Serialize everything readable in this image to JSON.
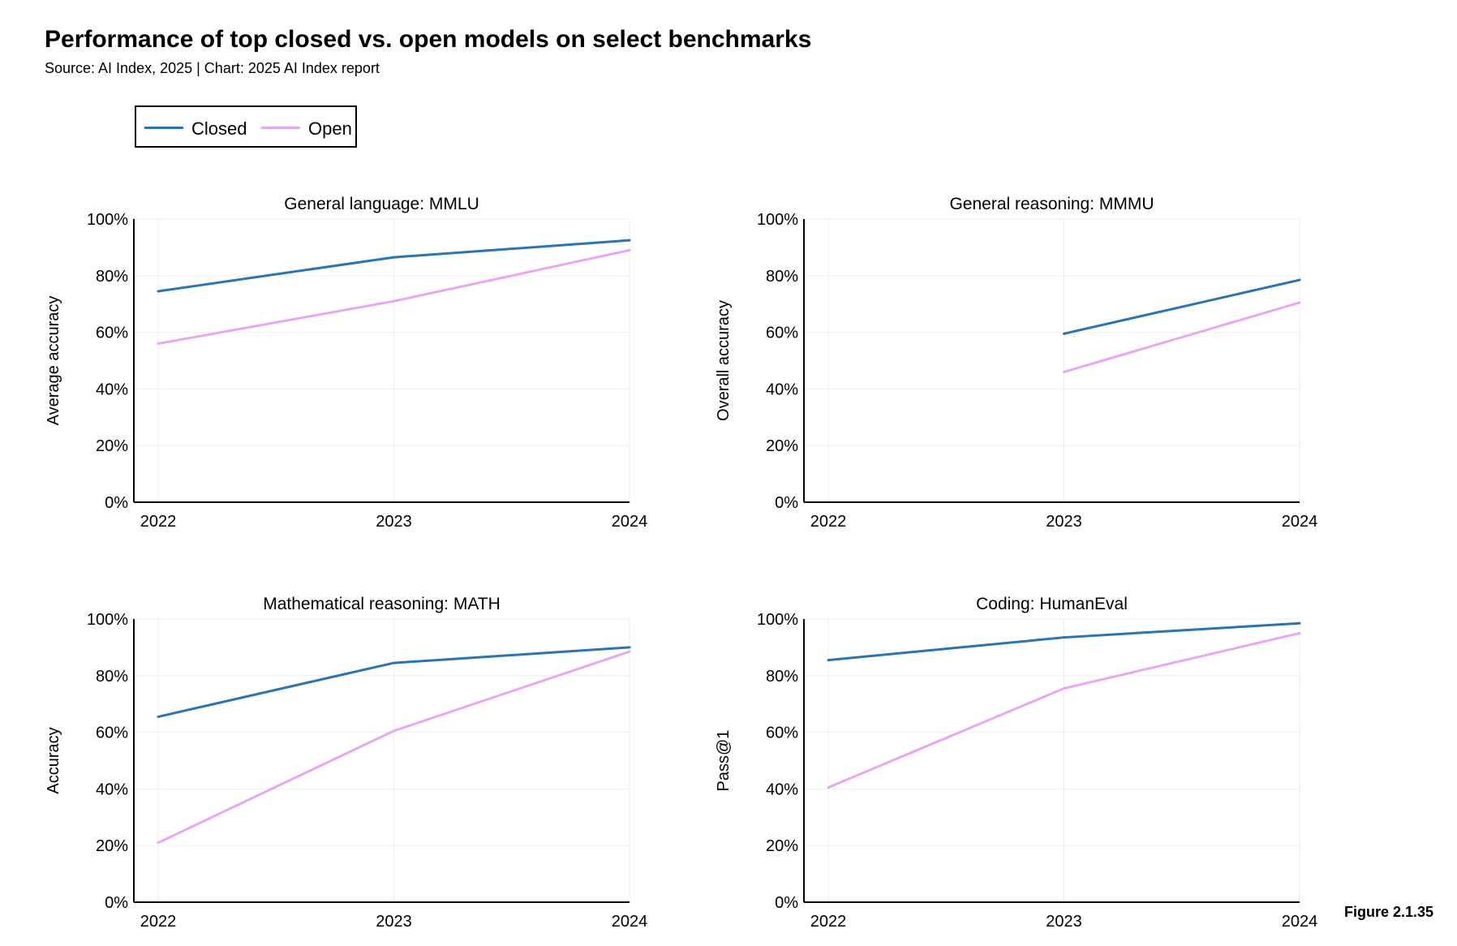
{
  "title": "Performance of top closed vs. open models on select benchmarks",
  "subtitle": "Source: AI Index, 2025 | Chart: 2025 AI Index report",
  "legend": {
    "closed_label": "Closed",
    "open_label": "Open"
  },
  "figure_label": "Figure 2.1.35",
  "colors": {
    "closed": "#2a74b0",
    "open": "#e6a8f2",
    "grid": "#eeeeee",
    "axis": "#000000"
  },
  "chart_data": [
    {
      "type": "line",
      "title": "General language: MMLU",
      "ylabel": "Average accuracy",
      "x": [
        "2022",
        "2023",
        "2024"
      ],
      "ylim": [
        0,
        100
      ],
      "yticks": [
        "0%",
        "20%",
        "40%",
        "60%",
        "80%",
        "100%"
      ],
      "grid": true,
      "series": [
        {
          "name": "Closed",
          "values": [
            74.5,
            86.5,
            92.5
          ]
        },
        {
          "name": "Open",
          "values": [
            56,
            71,
            89
          ]
        }
      ]
    },
    {
      "type": "line",
      "title": "General reasoning: MMMU",
      "ylabel": "Overall accuracy",
      "x": [
        "2022",
        "2023",
        "2024"
      ],
      "ylim": [
        0,
        100
      ],
      "yticks": [
        "0%",
        "20%",
        "40%",
        "60%",
        "80%",
        "100%"
      ],
      "grid": true,
      "series": [
        {
          "name": "Closed",
          "values": [
            null,
            59.5,
            78.5
          ]
        },
        {
          "name": "Open",
          "values": [
            null,
            46,
            70.5
          ]
        }
      ]
    },
    {
      "type": "line",
      "title": "Mathematical reasoning: MATH",
      "ylabel": "Accuracy",
      "x": [
        "2022",
        "2023",
        "2024"
      ],
      "ylim": [
        0,
        100
      ],
      "yticks": [
        "0%",
        "20%",
        "40%",
        "60%",
        "80%",
        "100%"
      ],
      "grid": true,
      "series": [
        {
          "name": "Closed",
          "values": [
            65.5,
            84.5,
            90
          ]
        },
        {
          "name": "Open",
          "values": [
            21,
            60.5,
            88.5
          ]
        }
      ]
    },
    {
      "type": "line",
      "title": "Coding: HumanEval",
      "ylabel": "Pass@1",
      "x": [
        "2022",
        "2023",
        "2024"
      ],
      "ylim": [
        0,
        100
      ],
      "yticks": [
        "0%",
        "20%",
        "40%",
        "60%",
        "80%",
        "100%"
      ],
      "grid": true,
      "series": [
        {
          "name": "Closed",
          "values": [
            85.5,
            93.5,
            98.5
          ]
        },
        {
          "name": "Open",
          "values": [
            40.5,
            75.5,
            95
          ]
        }
      ]
    }
  ]
}
